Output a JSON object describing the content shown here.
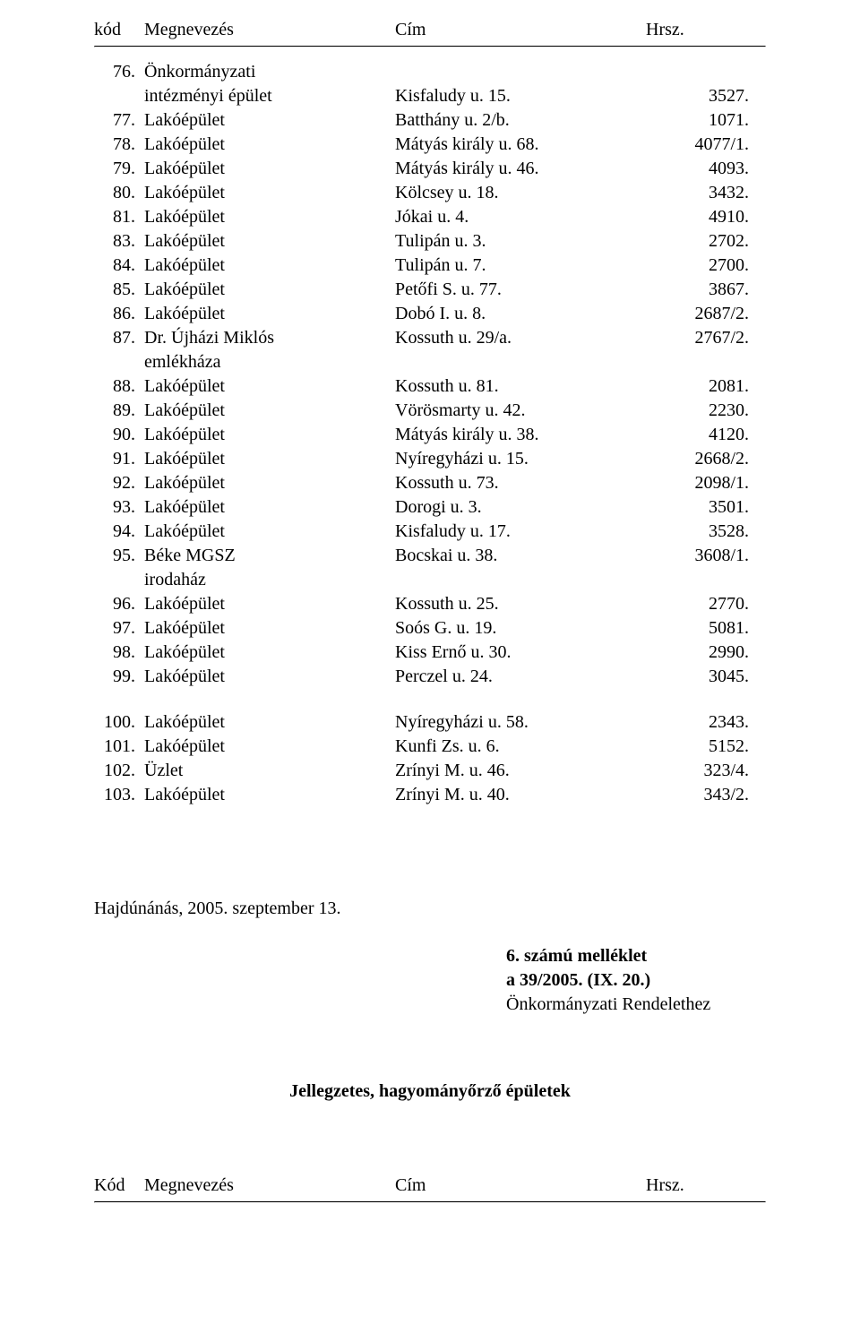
{
  "header": {
    "kod": "kód",
    "name": "Megnevezés",
    "cim": "Cím",
    "hrsz": "Hrsz."
  },
  "rows1": [
    {
      "num": "76.",
      "label": "Önkormányzati",
      "cim": "",
      "hrsz": ""
    },
    {
      "num": "",
      "label": "intézményi épület",
      "cim": "Kisfaludy u. 15.",
      "hrsz": "3527."
    },
    {
      "num": "77.",
      "label": "Lakóépület",
      "cim": "Batthány u. 2/b.",
      "hrsz": "1071."
    },
    {
      "num": "78.",
      "label": "Lakóépület",
      "cim": "Mátyás király u. 68.",
      "hrsz": "4077/1."
    },
    {
      "num": "79.",
      "label": "Lakóépület",
      "cim": "Mátyás király u. 46.",
      "hrsz": "4093."
    },
    {
      "num": "80.",
      "label": "Lakóépület",
      "cim": "Kölcsey u. 18.",
      "hrsz": "3432."
    },
    {
      "num": "81.",
      "label": "Lakóépület",
      "cim": "Jókai u. 4.",
      "hrsz": "4910."
    },
    {
      "num": "83.",
      "label": "Lakóépület",
      "cim": "Tulipán u. 3.",
      "hrsz": "2702."
    },
    {
      "num": "84.",
      "label": "Lakóépület",
      "cim": "Tulipán u. 7.",
      "hrsz": "2700."
    },
    {
      "num": "85.",
      "label": "Lakóépület",
      "cim": "Petőfi S. u. 77.",
      "hrsz": "3867."
    },
    {
      "num": "86.",
      "label": "Lakóépület",
      "cim": "Dobó I. u. 8.",
      "hrsz": "2687/2."
    },
    {
      "num": "87.",
      "label": "Dr. Újházi Miklós",
      "cim": "Kossuth u. 29/a.",
      "hrsz": "2767/2."
    },
    {
      "num": "",
      "label": "emlékháza",
      "cim": "",
      "hrsz": ""
    },
    {
      "num": "88.",
      "label": "Lakóépület",
      "cim": "Kossuth u. 81.",
      "hrsz": "2081."
    },
    {
      "num": "89.",
      "label": "Lakóépület",
      "cim": "Vörösmarty u. 42.",
      "hrsz": "2230."
    },
    {
      "num": "90.",
      "label": "Lakóépület",
      "cim": "Mátyás király u. 38.",
      "hrsz": "4120."
    },
    {
      "num": "91.",
      "label": "Lakóépület",
      "cim": "Nyíregyházi u. 15.",
      "hrsz": "2668/2."
    },
    {
      "num": "92.",
      "label": "Lakóépület",
      "cim": "Kossuth u. 73.",
      "hrsz": "2098/1."
    },
    {
      "num": "93.",
      "label": "Lakóépület",
      "cim": "Dorogi u. 3.",
      "hrsz": "3501."
    },
    {
      "num": "94.",
      "label": "Lakóépület",
      "cim": "Kisfaludy u. 17.",
      "hrsz": "3528."
    },
    {
      "num": "95.",
      "label": "Béke MGSZ",
      "cim": "Bocskai u. 38.",
      "hrsz": "3608/1."
    },
    {
      "num": "",
      "label": "irodaház",
      "cim": "",
      "hrsz": ""
    },
    {
      "num": "96.",
      "label": "Lakóépület",
      "cim": "Kossuth u. 25.",
      "hrsz": "2770."
    },
    {
      "num": "97.",
      "label": "Lakóépület",
      "cim": "Soós G. u. 19.",
      "hrsz": "5081."
    },
    {
      "num": "98.",
      "label": "Lakóépület",
      "cim": "Kiss Ernő u. 30.",
      "hrsz": "2990."
    },
    {
      "num": "99.",
      "label": "Lakóépület",
      "cim": "Perczel u. 24.",
      "hrsz": "3045."
    }
  ],
  "rows2": [
    {
      "num": "100.",
      "label": "Lakóépület",
      "cim": "Nyíregyházi u. 58.",
      "hrsz": "2343."
    },
    {
      "num": "101.",
      "label": "Lakóépület",
      "cim": "Kunfi Zs. u. 6.",
      "hrsz": "5152."
    },
    {
      "num": "102.",
      "label": "Üzlet",
      "cim": "Zrínyi M. u. 46.",
      "hrsz": "323/4."
    },
    {
      "num": "103.",
      "label": "Lakóépület",
      "cim": "Zrínyi M. u. 40.",
      "hrsz": "343/2."
    }
  ],
  "date": "Hajdúnánás, 2005. szeptember 13.",
  "appendix": {
    "l1": "6. számú melléklet",
    "l2": "a 39/2005. (IX. 20.)",
    "l3": "Önkormányzati Rendelethez"
  },
  "section_title": "Jellegzetes, hagyományőrző épületek",
  "footer_header": {
    "kod": "Kód",
    "name": "Megnevezés",
    "cim": "Cím",
    "hrsz": "Hrsz."
  }
}
